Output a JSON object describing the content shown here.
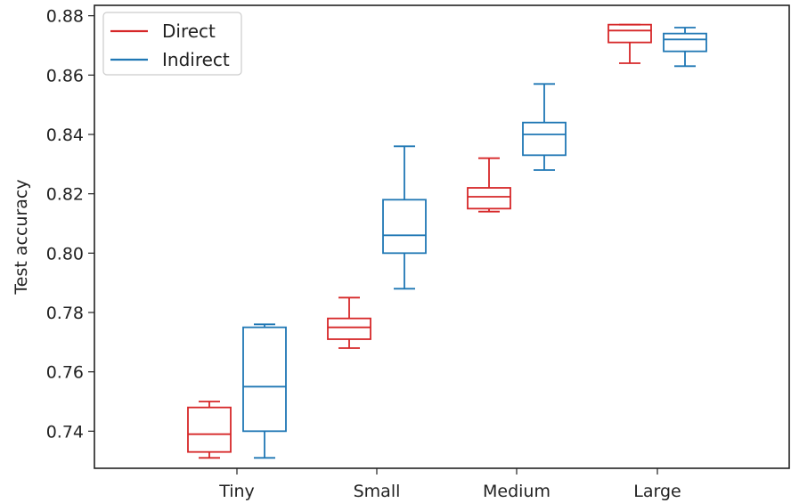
{
  "chart_data": {
    "type": "box",
    "ylabel": "Test accuracy",
    "xlabel": "",
    "categories": [
      "Tiny",
      "Small",
      "Medium",
      "Large"
    ],
    "ylim": [
      0.7275,
      0.8835
    ],
    "yticks": [
      "0.74",
      "0.76",
      "0.78",
      "0.80",
      "0.82",
      "0.84",
      "0.86",
      "0.88"
    ],
    "yticks_values": [
      0.74,
      0.76,
      0.78,
      0.8,
      0.82,
      0.84,
      0.86,
      0.88
    ],
    "grid": false,
    "legend_position": "top-left",
    "series": [
      {
        "name": "Direct",
        "color": "#d62728",
        "boxes": [
          {
            "whisker_low": 0.731,
            "q1": 0.733,
            "median": 0.739,
            "q3": 0.748,
            "whisker_high": 0.75
          },
          {
            "whisker_low": 0.768,
            "q1": 0.771,
            "median": 0.775,
            "q3": 0.778,
            "whisker_high": 0.785
          },
          {
            "whisker_low": 0.814,
            "q1": 0.815,
            "median": 0.819,
            "q3": 0.822,
            "whisker_high": 0.832
          },
          {
            "whisker_low": 0.864,
            "q1": 0.871,
            "median": 0.875,
            "q3": 0.877,
            "whisker_high": 0.877
          }
        ]
      },
      {
        "name": "Indirect",
        "color": "#1f77b4",
        "boxes": [
          {
            "whisker_low": 0.731,
            "q1": 0.74,
            "median": 0.755,
            "q3": 0.775,
            "whisker_high": 0.776
          },
          {
            "whisker_low": 0.788,
            "q1": 0.8,
            "median": 0.806,
            "q3": 0.818,
            "whisker_high": 0.836
          },
          {
            "whisker_low": 0.828,
            "q1": 0.833,
            "median": 0.84,
            "q3": 0.844,
            "whisker_high": 0.857
          },
          {
            "whisker_low": 0.863,
            "q1": 0.868,
            "median": 0.872,
            "q3": 0.874,
            "whisker_high": 0.876
          }
        ]
      }
    ]
  }
}
